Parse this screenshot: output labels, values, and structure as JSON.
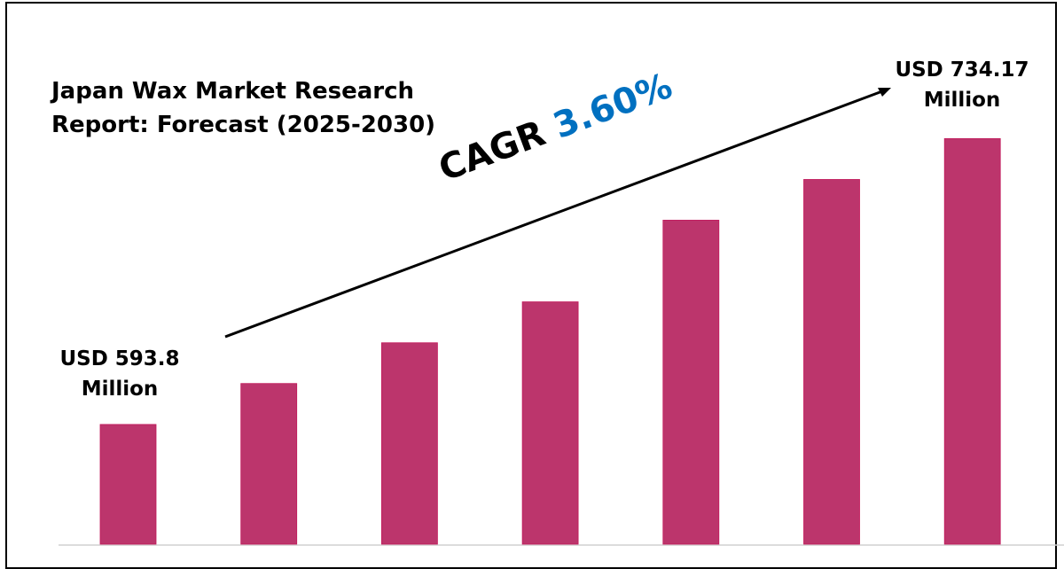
{
  "chart_data": {
    "type": "bar",
    "title": "Japan Wax Market Research Report: Forecast (2025-2030)",
    "title_lines": [
      "Japan Wax Market Research",
      "Report: Forecast (2025-2030)"
    ],
    "values": [
      593.8,
      613.9,
      633.9,
      654.0,
      694.1,
      714.1,
      734.17
    ],
    "unit": "USD Million",
    "annotations": {
      "start": [
        "USD 593.8",
        "Million"
      ],
      "end": [
        "USD 734.17",
        "Million"
      ],
      "cagr_label": "CAGR",
      "cagr_value": "3.60%"
    },
    "ylim": [
      535,
      760
    ],
    "grid": false,
    "legend": "none",
    "colors": {
      "bar": "#bc356c",
      "cagr_value": "#0070c0",
      "text": "#000000",
      "baseline": "#d0d0d0"
    }
  }
}
